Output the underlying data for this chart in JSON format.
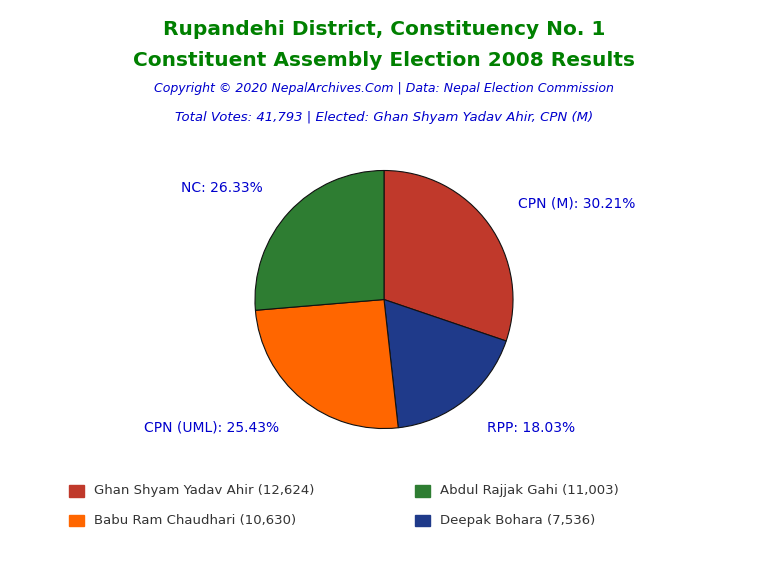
{
  "title_line1": "Rupandehi District, Constituency No. 1",
  "title_line2": "Constituent Assembly Election 2008 Results",
  "title_color": "#008000",
  "copyright_text": "Copyright © 2020 NepalArchives.Com | Data: Nepal Election Commission",
  "copyright_color": "#0000CD",
  "info_text": "Total Votes: 41,793 | Elected: Ghan Shyam Yadav Ahir, CPN (M)",
  "info_color": "#0000CD",
  "slices": [
    {
      "label": "CPN (M)",
      "pct": 30.21,
      "votes": 12624,
      "color": "#C0392B",
      "candidate": "Ghan Shyam Yadav Ahir"
    },
    {
      "label": "RPP",
      "pct": 18.03,
      "votes": 7536,
      "color": "#1F3A8A",
      "candidate": "Deepak Bohara"
    },
    {
      "label": "CPN (UML)",
      "pct": 25.43,
      "votes": 10630,
      "color": "#FF6600",
      "candidate": "Babu Ram Chaudhari"
    },
    {
      "label": "NC",
      "pct": 26.33,
      "votes": 11003,
      "color": "#2E7D32",
      "candidate": "Abdul Rajjak Gahi"
    }
  ],
  "slice_label_color": "#0000CD",
  "background_color": "#FFFFFF",
  "legend": [
    {
      "color": "#C0392B",
      "text": "Ghan Shyam Yadav Ahir (12,624)"
    },
    {
      "color": "#2E7D32",
      "text": "Abdul Rajjak Gahi (11,003)"
    },
    {
      "color": "#FF6600",
      "text": "Babu Ram Chaudhari (10,630)"
    },
    {
      "color": "#1F3A8A",
      "text": "Deepak Bohara (7,536)"
    }
  ]
}
